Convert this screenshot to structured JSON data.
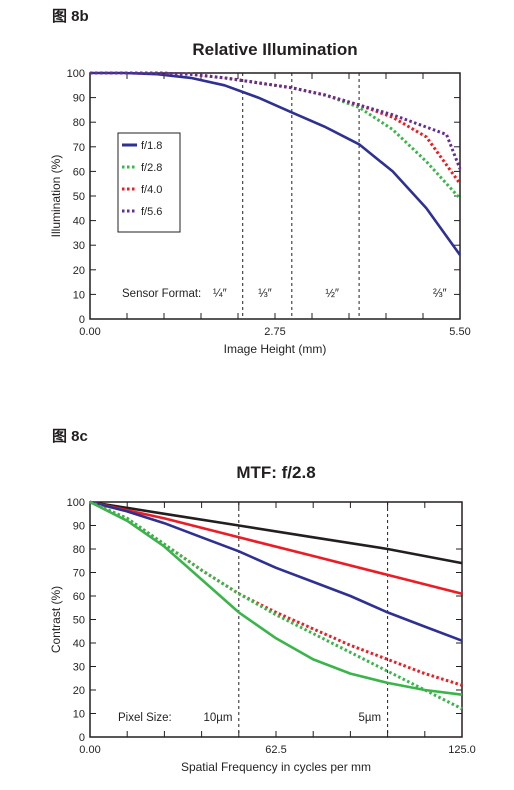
{
  "chart_data": [
    {
      "type": "line",
      "figure_label": "图 8b",
      "title": "Relative Illumination",
      "xlabel": "Image Height (mm)",
      "ylabel": "Illumination (%)",
      "xlim": [
        0,
        5.5
      ],
      "ylim": [
        0,
        100
      ],
      "x_ticks": [
        "0.00",
        "2.75",
        "5.50"
      ],
      "y_ticks": [
        "0",
        "10",
        "20",
        "30",
        "40",
        "50",
        "60",
        "70",
        "80",
        "90",
        "100"
      ],
      "legend_position": "middle-left",
      "annotation_label": "Sensor Format:",
      "markers": [
        {
          "x": 2.27,
          "label": "¼″",
          "label_x": 1.93
        },
        {
          "x": 3.0,
          "label": "⅓″",
          "label_x": 2.6
        },
        {
          "x": 4.0,
          "label": "½″",
          "label_x": 3.6
        },
        {
          "label": "⅔″",
          "label_x": 5.2
        }
      ],
      "series": [
        {
          "name": "f/1.8",
          "color": "#2e3192",
          "dash": "solid",
          "x": [
            0,
            0.5,
            1.0,
            1.5,
            2.0,
            2.5,
            3.0,
            3.5,
            4.0,
            4.5,
            5.0,
            5.5
          ],
          "y": [
            100,
            100,
            99.5,
            98,
            95,
            90,
            84,
            78,
            71,
            60,
            45,
            26
          ]
        },
        {
          "name": "f/2.8",
          "color": "#39b54a",
          "dash": "dot",
          "x": [
            0,
            0.5,
            1.0,
            1.5,
            2.0,
            2.5,
            3.0,
            3.5,
            4.0,
            4.5,
            5.0,
            5.5
          ],
          "y": [
            100,
            100,
            100,
            99.5,
            98,
            96,
            94,
            91,
            86,
            77,
            64,
            49
          ]
        },
        {
          "name": "f/4.0",
          "color": "#ed1c24",
          "dash": "dot",
          "x": [
            0,
            0.5,
            1.0,
            1.5,
            2.0,
            2.5,
            3.0,
            3.5,
            4.0,
            4.5,
            5.0,
            5.5
          ],
          "y": [
            100,
            100,
            100,
            99.5,
            98,
            96,
            94,
            91,
            87,
            82,
            74,
            55
          ]
        },
        {
          "name": "f/5.6",
          "color": "#662d91",
          "dash": "dot",
          "x": [
            0,
            0.5,
            1.0,
            1.5,
            2.0,
            2.5,
            3.0,
            3.5,
            4.0,
            4.5,
            5.0,
            5.3,
            5.5
          ],
          "y": [
            100,
            100,
            100,
            99.5,
            98,
            96,
            94,
            91,
            87,
            83,
            78,
            75,
            61
          ]
        }
      ]
    },
    {
      "type": "line",
      "figure_label": "图 8c",
      "title": "MTF: f/2.8",
      "xlabel": "Spatial Frequency in cycles per mm",
      "ylabel": "Contrast (%)",
      "xlim": [
        0,
        125
      ],
      "ylim": [
        0,
        100
      ],
      "x_ticks": [
        "0.00",
        "62.5",
        "125.0"
      ],
      "y_ticks": [
        "0",
        "10",
        "20",
        "30",
        "40",
        "50",
        "60",
        "70",
        "80",
        "90",
        "100"
      ],
      "annotation_label": "Pixel Size:",
      "markers": [
        {
          "x": 50,
          "label": "10µm",
          "label_x": 43
        },
        {
          "x": 100,
          "label": "5µm",
          "label_x": 94
        }
      ],
      "series": [
        {
          "color": "#231f20",
          "dash": "solid",
          "x": [
            0,
            25,
            50,
            75,
            100,
            125
          ],
          "y": [
            100,
            95,
            90,
            85,
            80,
            74
          ]
        },
        {
          "color": "#ed1c24",
          "dash": "solid",
          "x": [
            0,
            25,
            50,
            75,
            100,
            125
          ],
          "y": [
            100,
            93,
            85,
            77,
            69,
            61
          ]
        },
        {
          "color": "#2e3192",
          "dash": "solid",
          "x": [
            0,
            12.5,
            25,
            37.5,
            50,
            62.5,
            75,
            87.5,
            100,
            112.5,
            125
          ],
          "y": [
            100,
            96,
            91,
            85,
            79,
            72,
            66,
            60,
            53,
            47,
            41
          ]
        },
        {
          "color": "#ed1c24",
          "dash": "dot",
          "x": [
            0,
            12.5,
            25,
            37.5,
            50,
            62.5,
            75,
            87.5,
            100,
            112.5,
            125
          ],
          "y": [
            100,
            93,
            82,
            71,
            61,
            53,
            46,
            39,
            33,
            27,
            22
          ]
        },
        {
          "color": "#39b54a",
          "dash": "dot",
          "x": [
            0,
            12.5,
            25,
            37.5,
            50,
            62.5,
            75,
            87.5,
            100,
            112.5,
            125
          ],
          "y": [
            100,
            93,
            82,
            71,
            61,
            52,
            44,
            36,
            28,
            20,
            12
          ]
        },
        {
          "color": "#39b54a",
          "dash": "solid",
          "x": [
            0,
            12.5,
            25,
            37.5,
            50,
            62.5,
            75,
            87.5,
            100,
            112.5,
            125
          ],
          "y": [
            100,
            92,
            81,
            67,
            53,
            42,
            33,
            27,
            23,
            20,
            18
          ]
        }
      ]
    }
  ]
}
